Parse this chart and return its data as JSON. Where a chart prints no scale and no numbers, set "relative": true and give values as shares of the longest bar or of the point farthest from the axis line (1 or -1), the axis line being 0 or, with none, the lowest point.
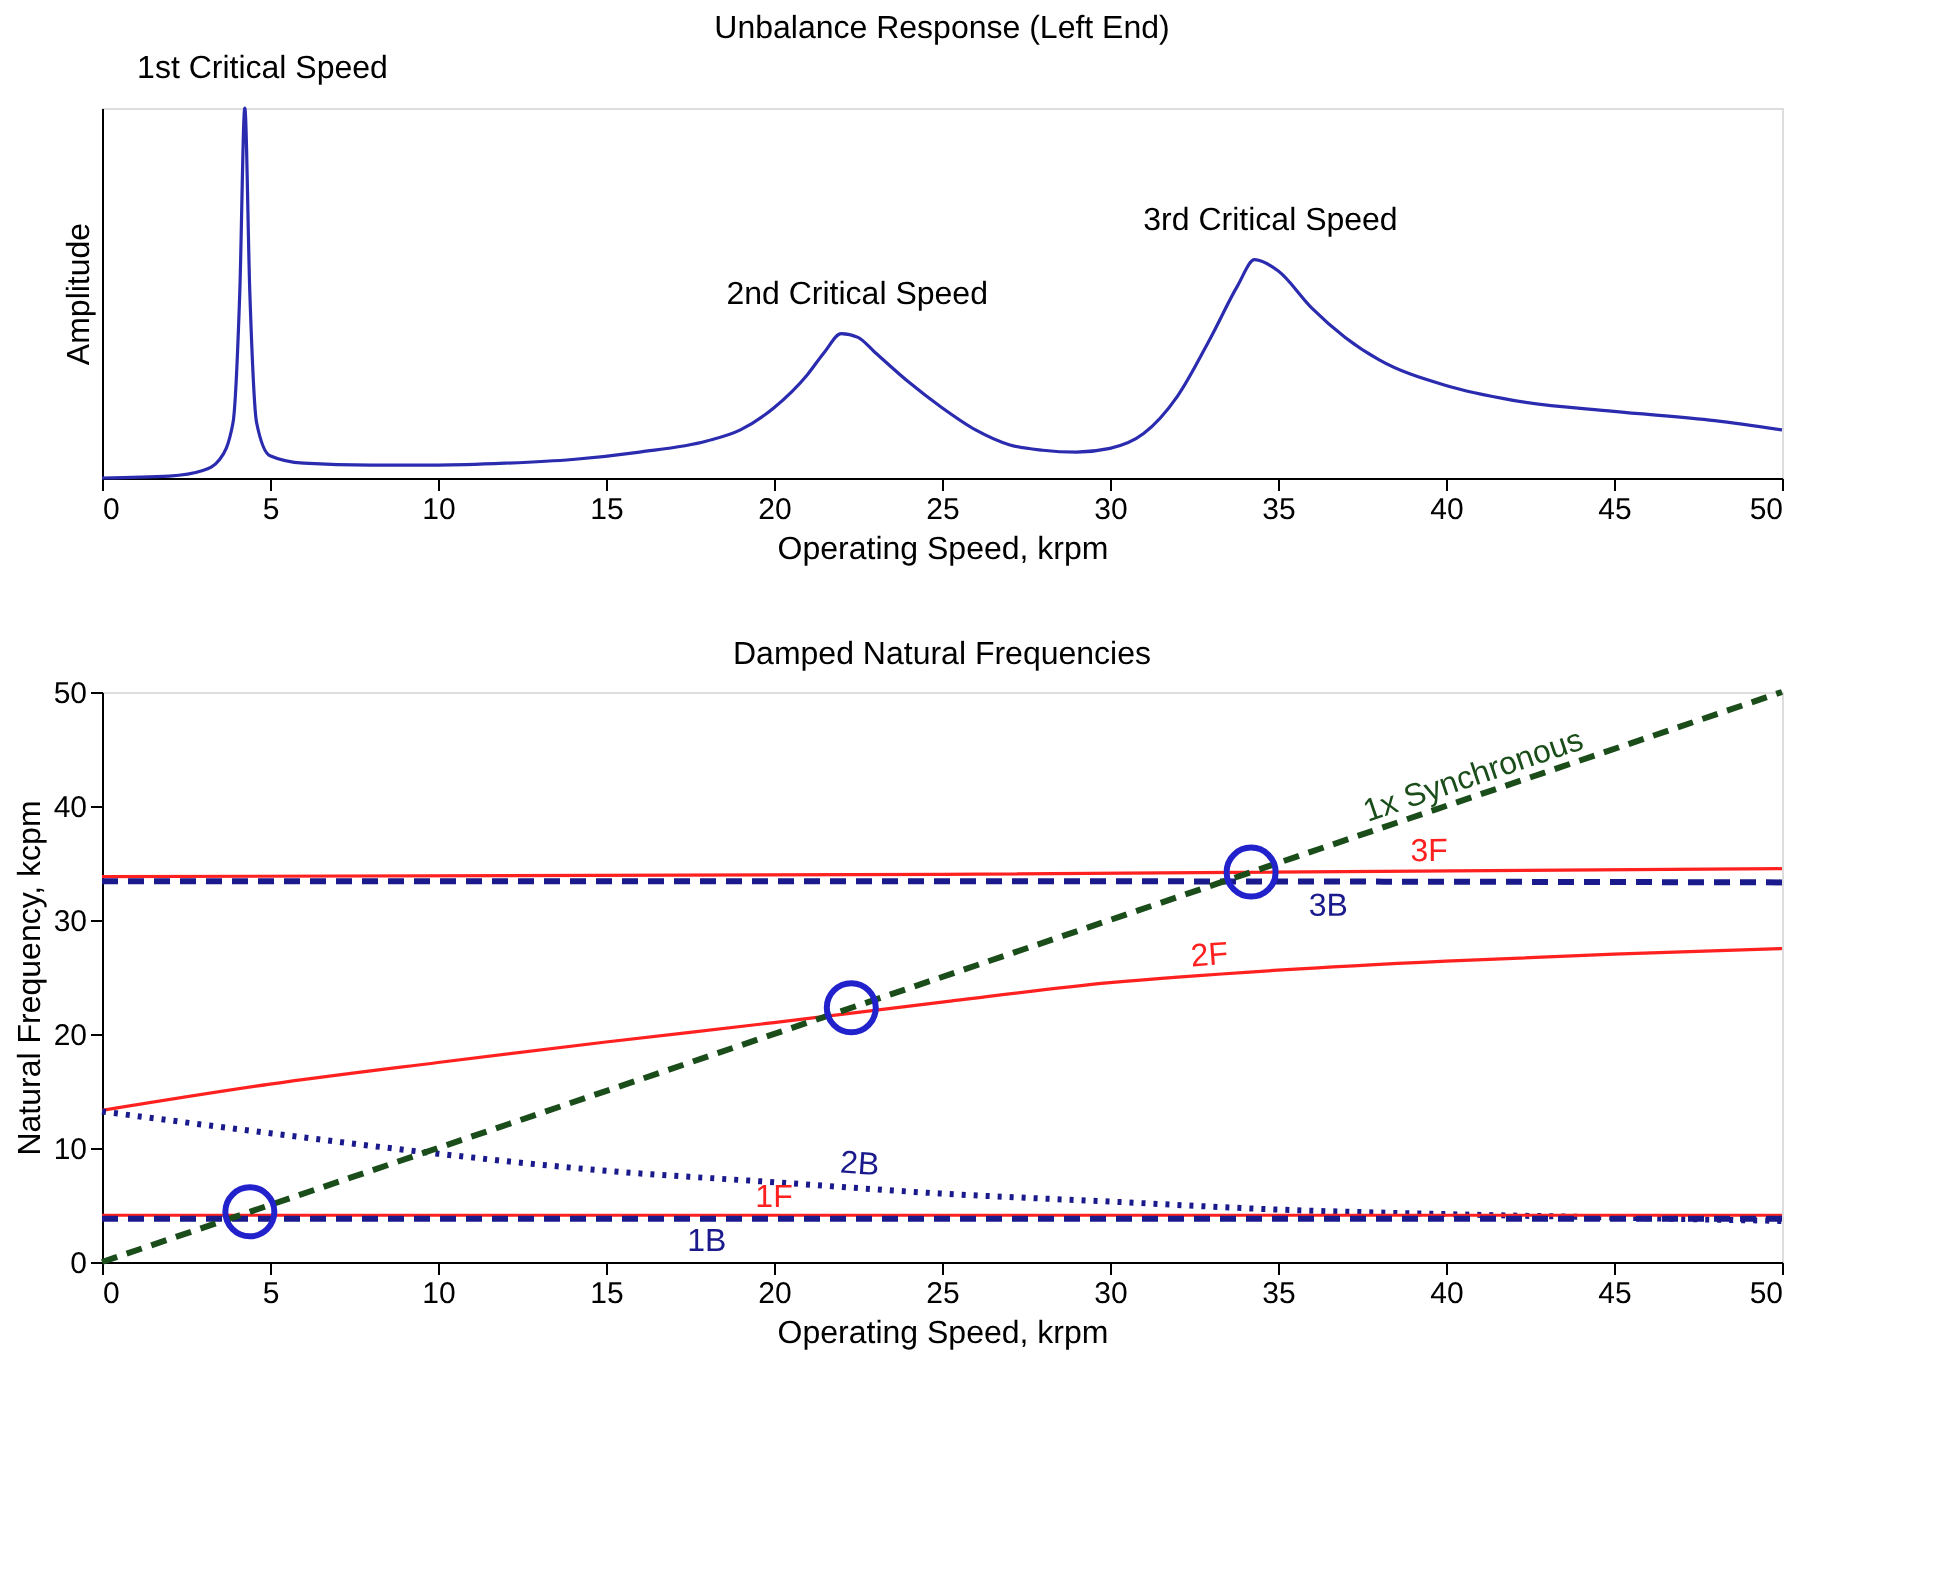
{
  "chart_data": [
    {
      "type": "line",
      "title": "Unbalance Response (Left End)",
      "xlabel": "Operating Speed, krpm",
      "ylabel": "Amplitude",
      "relative": true,
      "xlim": [
        0,
        50
      ],
      "xticks": [
        0,
        5,
        10,
        15,
        20,
        25,
        30,
        35,
        40,
        45,
        50
      ],
      "grid": false,
      "marker": "none",
      "series": [
        {
          "color": "#2b2bb0",
          "line_style": "solid",
          "x": [
            0,
            2,
            3,
            3.5,
            3.9,
            4.1,
            4.25,
            4.4,
            4.6,
            5,
            6,
            8,
            10,
            12,
            14,
            16,
            18,
            19,
            20,
            21,
            21.5,
            22,
            22.5,
            23,
            24,
            25,
            26,
            27,
            28,
            29,
            30,
            31,
            32,
            33,
            33.8,
            34.3,
            35,
            36,
            37,
            38,
            40,
            42,
            45,
            48,
            50
          ],
          "values": [
            0,
            0.005,
            0.02,
            0.05,
            0.15,
            0.5,
            1.0,
            0.5,
            0.15,
            0.06,
            0.04,
            0.035,
            0.035,
            0.04,
            0.05,
            0.07,
            0.1,
            0.13,
            0.19,
            0.28,
            0.34,
            0.39,
            0.38,
            0.34,
            0.26,
            0.19,
            0.13,
            0.09,
            0.075,
            0.07,
            0.08,
            0.12,
            0.22,
            0.38,
            0.52,
            0.59,
            0.56,
            0.46,
            0.38,
            0.32,
            0.25,
            0.21,
            0.18,
            0.155,
            0.13
          ]
        }
      ],
      "annotations": [
        {
          "text": "1st Critical Speed",
          "x": 4.3,
          "y": 1.0
        },
        {
          "text": "2nd Critical Speed",
          "x": 22,
          "y": 0.39
        },
        {
          "text": "3rd Critical Speed",
          "x": 34.3,
          "y": 0.59
        }
      ]
    },
    {
      "type": "line",
      "title": "Damped Natural Frequencies",
      "xlabel": "Operating Speed, krpm",
      "ylabel": "Natural Frequency, kcpm",
      "xlim": [
        0,
        50
      ],
      "ylim": [
        0,
        50
      ],
      "xticks": [
        0,
        5,
        10,
        15,
        20,
        25,
        30,
        35,
        40,
        45,
        50
      ],
      "yticks": [
        0,
        10,
        20,
        30,
        40,
        50
      ],
      "grid": false,
      "marker": "none",
      "series": [
        {
          "name": "3F",
          "color": "#ff2020",
          "line_style": "solid",
          "x": [
            0,
            25,
            50
          ],
          "values": [
            33.8,
            34.0,
            34.5
          ]
        },
        {
          "name": "3B",
          "color": "#1a1a8c",
          "line_style": "dashed",
          "x": [
            0,
            25,
            50
          ],
          "values": [
            33.4,
            33.4,
            33.3
          ]
        },
        {
          "name": "2F",
          "color": "#ff2020",
          "line_style": "solid",
          "x": [
            0,
            5,
            10,
            15,
            20,
            25,
            30,
            35,
            40,
            45,
            50
          ],
          "values": [
            13.3,
            15.6,
            17.5,
            19.3,
            21.0,
            22.8,
            24.5,
            25.6,
            26.4,
            27.0,
            27.5
          ]
        },
        {
          "name": "2B",
          "color": "#1a1a8c",
          "line_style": "dotted",
          "x": [
            0,
            5,
            10,
            15,
            20,
            25,
            30,
            35,
            40,
            45,
            50
          ],
          "values": [
            13.2,
            11.3,
            9.5,
            8.0,
            7.0,
            6.0,
            5.3,
            4.6,
            4.2,
            3.9,
            3.6
          ]
        },
        {
          "name": "1F",
          "color": "#ff2020",
          "line_style": "solid",
          "x": [
            0,
            50
          ],
          "values": [
            4.1,
            4.1
          ]
        },
        {
          "name": "1B",
          "color": "#1a1a8c",
          "line_style": "dashed",
          "x": [
            0,
            50
          ],
          "values": [
            3.8,
            3.8
          ]
        },
        {
          "name": "1x Synchronous",
          "color": "#1a4d1a",
          "line_style": "dashed",
          "x": [
            0,
            50
          ],
          "values": [
            0,
            50
          ]
        },
        {
          "type": "scatter",
          "color": "#2222cc",
          "marker": "circle",
          "x": [
            4.4,
            22.3,
            34.2
          ],
          "values": [
            4.4,
            22.3,
            34.2
          ]
        }
      ]
    }
  ]
}
